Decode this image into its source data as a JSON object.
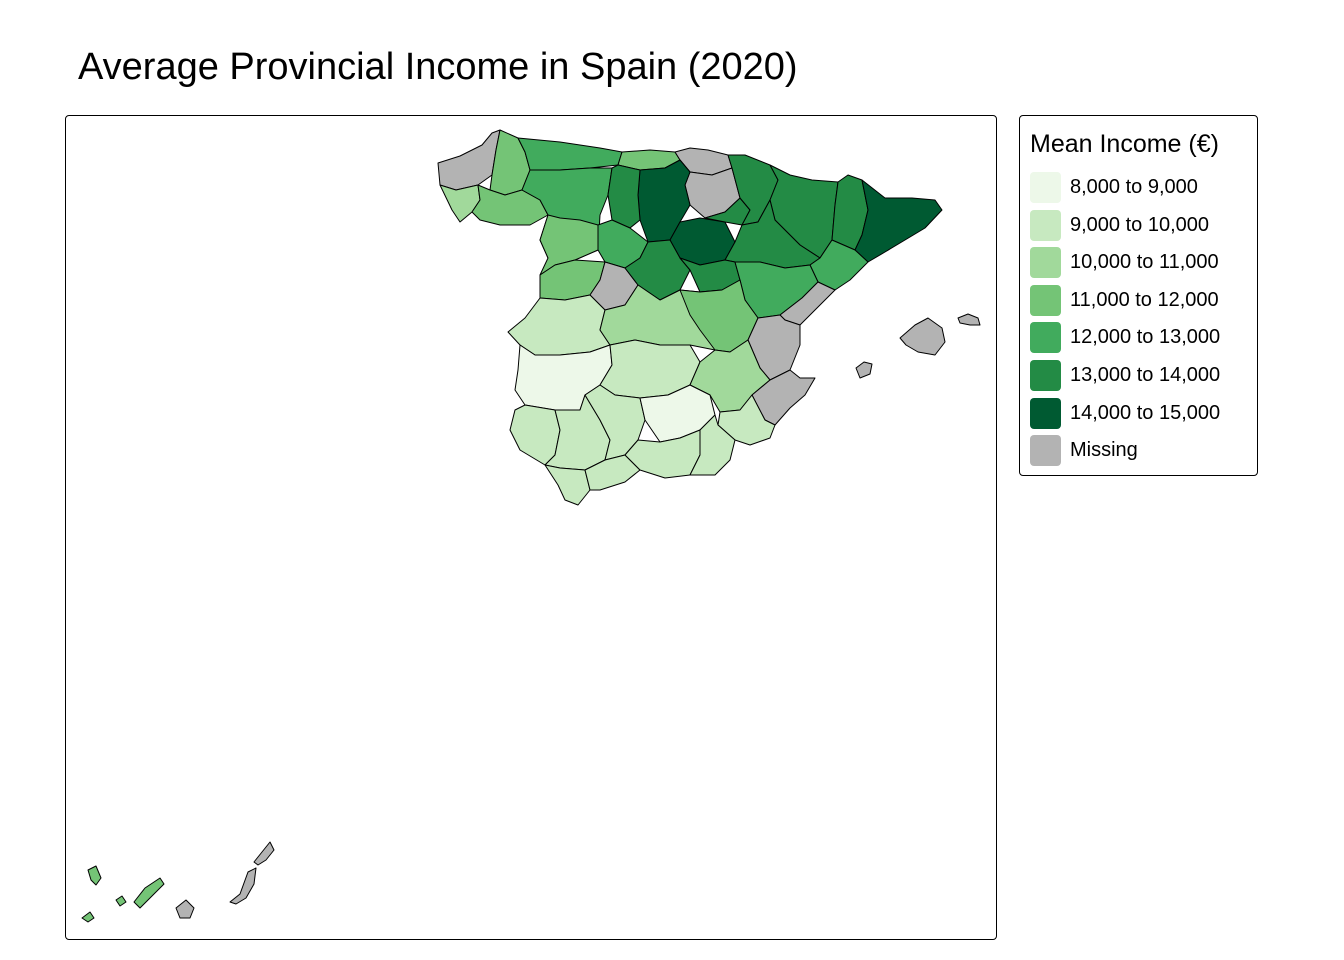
{
  "title": "Average Provincial Income in Spain (2020)",
  "legend": {
    "title": "Mean Income (€)",
    "items": [
      {
        "label": "8,000 to 9,000",
        "color": "#edf8e9"
      },
      {
        "label": "9,000 to 10,000",
        "color": "#c7e9c0"
      },
      {
        "label": "10,000 to 11,000",
        "color": "#a1d99b"
      },
      {
        "label": "11,000 to 12,000",
        "color": "#74c476"
      },
      {
        "label": "12,000 to 13,000",
        "color": "#41ab5d"
      },
      {
        "label": "13,000 to 14,000",
        "color": "#238b45"
      },
      {
        "label": "14,000 to 15,000",
        "color": "#005a32"
      },
      {
        "label": "Missing",
        "color": "#b3b3b3"
      }
    ]
  },
  "regions": [
    {
      "name": "galicia-north",
      "class": "Missing"
    },
    {
      "name": "galicia-coast",
      "class": "10,000 to 11,000"
    },
    {
      "name": "lugo",
      "class": "11,000 to 12,000"
    },
    {
      "name": "ourense",
      "class": "11,000 to 12,000"
    },
    {
      "name": "asturias",
      "class": "12,000 to 13,000"
    },
    {
      "name": "leon",
      "class": "12,000 to 13,000"
    },
    {
      "name": "cantabria",
      "class": "11,000 to 12,000"
    },
    {
      "name": "bizkaia",
      "class": "Missing"
    },
    {
      "name": "araba",
      "class": "Missing"
    },
    {
      "name": "burgos",
      "class": "14,000 to 15,000"
    },
    {
      "name": "palencia",
      "class": "13,000 to 14,000"
    },
    {
      "name": "zamora",
      "class": "11,000 to 12,000"
    },
    {
      "name": "valladolid",
      "class": "12,000 to 13,000"
    },
    {
      "name": "soria",
      "class": "14,000 to 15,000"
    },
    {
      "name": "la-rioja",
      "class": "13,000 to 14,000"
    },
    {
      "name": "navarra",
      "class": "13,000 to 14,000"
    },
    {
      "name": "huesca",
      "class": "13,000 to 14,000"
    },
    {
      "name": "lleida",
      "class": "13,000 to 14,000"
    },
    {
      "name": "girona-barcelona",
      "class": "14,000 to 15,000"
    },
    {
      "name": "zaragoza",
      "class": "13,000 to 14,000"
    },
    {
      "name": "tarragona",
      "class": "12,000 to 13,000"
    },
    {
      "name": "salamanca",
      "class": "11,000 to 12,000"
    },
    {
      "name": "avila",
      "class": "Missing"
    },
    {
      "name": "segovia",
      "class": "13,000 to 14,000"
    },
    {
      "name": "guadalajara",
      "class": "13,000 to 14,000"
    },
    {
      "name": "teruel",
      "class": "12,000 to 13,000"
    },
    {
      "name": "castellon",
      "class": "Missing"
    },
    {
      "name": "caceres",
      "class": "9,000 to 10,000"
    },
    {
      "name": "toledo",
      "class": "10,000 to 11,000"
    },
    {
      "name": "cuenca",
      "class": "11,000 to 12,000"
    },
    {
      "name": "valencia",
      "class": "Missing"
    },
    {
      "name": "badajoz",
      "class": "8,000 to 9,000"
    },
    {
      "name": "ciudad-real",
      "class": "9,000 to 10,000"
    },
    {
      "name": "albacete",
      "class": "10,000 to 11,000"
    },
    {
      "name": "alicante",
      "class": "Missing"
    },
    {
      "name": "huelva",
      "class": "9,000 to 10,000"
    },
    {
      "name": "sevilla",
      "class": "9,000 to 10,000"
    },
    {
      "name": "cordoba",
      "class": "9,000 to 10,000"
    },
    {
      "name": "jaen",
      "class": "8,000 to 9,000"
    },
    {
      "name": "murcia",
      "class": "9,000 to 10,000"
    },
    {
      "name": "cadiz",
      "class": "9,000 to 10,000"
    },
    {
      "name": "malaga",
      "class": "9,000 to 10,000"
    },
    {
      "name": "granada",
      "class": "9,000 to 10,000"
    },
    {
      "name": "almeria",
      "class": "9,000 to 10,000"
    },
    {
      "name": "mallorca",
      "class": "Missing"
    },
    {
      "name": "menorca",
      "class": "Missing"
    },
    {
      "name": "ibiza",
      "class": "Missing"
    },
    {
      "name": "la-palma",
      "class": "11,000 to 12,000"
    },
    {
      "name": "el-hierro",
      "class": "11,000 to 12,000"
    },
    {
      "name": "la-gomera",
      "class": "11,000 to 12,000"
    },
    {
      "name": "tenerife",
      "class": "11,000 to 12,000"
    },
    {
      "name": "gran-canaria",
      "class": "Missing"
    },
    {
      "name": "fuerteventura",
      "class": "Missing"
    },
    {
      "name": "lanzarote",
      "class": "Missing"
    }
  ]
}
